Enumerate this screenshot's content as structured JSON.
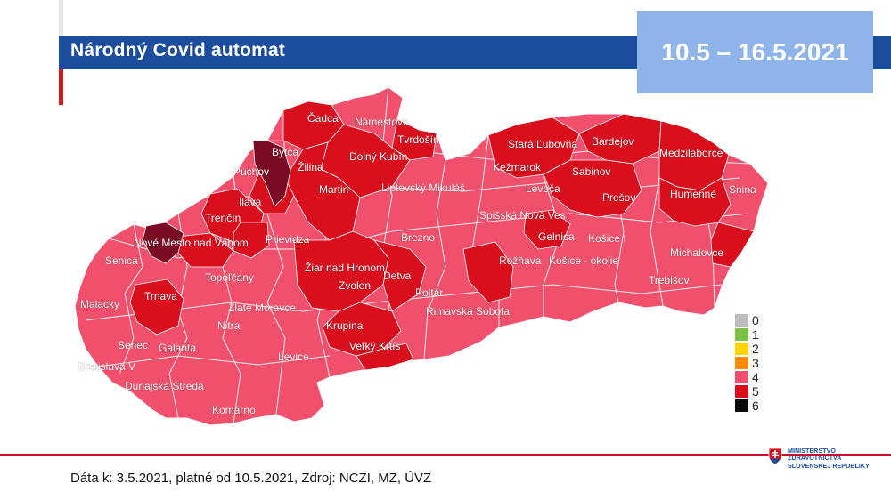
{
  "header": {
    "title": "Národný Covid automat",
    "date_range": "10.5 – 16.5.2021"
  },
  "colors": {
    "title_bar": "#1b4d9c",
    "date_box": "#8eb4ea",
    "accent_red": "#d7151f",
    "level_4": "#f0506b",
    "level_5": "#d90f1d",
    "level_6": "#7a0b24"
  },
  "legend": {
    "items": [
      {
        "label": "0",
        "color": "#bdbdbd"
      },
      {
        "label": "1",
        "color": "#7cc242"
      },
      {
        "label": "2",
        "color": "#ffd400"
      },
      {
        "label": "3",
        "color": "#ff8c00"
      },
      {
        "label": "4",
        "color": "#f0506b"
      },
      {
        "label": "5",
        "color": "#d90f1d"
      },
      {
        "label": "6",
        "color": "#0a0a0a"
      }
    ]
  },
  "map": {
    "districts": [
      {
        "name": "Čadca",
        "level": 5
      },
      {
        "name": "Námestovo",
        "level": 4
      },
      {
        "name": "Tvrdošín",
        "level": 5
      },
      {
        "name": "Bytča",
        "level": 6
      },
      {
        "name": "Žilina",
        "level": 4
      },
      {
        "name": "Dolný Kubín",
        "level": 5
      },
      {
        "name": "Púchov",
        "level": 5
      },
      {
        "name": "Martin",
        "level": 5
      },
      {
        "name": "Liptovský Mikuláš",
        "level": 4
      },
      {
        "name": "Stará Ľubovňa",
        "level": 5
      },
      {
        "name": "Bardejov",
        "level": 5
      },
      {
        "name": "Medzilaborce",
        "level": 5
      },
      {
        "name": "Kežmarok",
        "level": 5
      },
      {
        "name": "Sabinov",
        "level": 5
      },
      {
        "name": "Levoča",
        "level": 5
      },
      {
        "name": "Prešov",
        "level": 5
      },
      {
        "name": "Humenné",
        "level": 5
      },
      {
        "name": "Snina",
        "level": 4
      },
      {
        "name": "Ilava",
        "level": 5
      },
      {
        "name": "Trenčín",
        "level": 5
      },
      {
        "name": "Spišská Nová Ves",
        "level": 4
      },
      {
        "name": "Nové Mesto nad Váhom",
        "level": 6
      },
      {
        "name": "Prievidza",
        "level": 4
      },
      {
        "name": "Brezno",
        "level": 4
      },
      {
        "name": "Gelnica",
        "level": 5
      },
      {
        "name": "Košice I",
        "level": 4
      },
      {
        "name": "Senica",
        "level": 4
      },
      {
        "name": "Žiar nad Hronom",
        "level": 5
      },
      {
        "name": "Rožňava",
        "level": 5
      },
      {
        "name": "Košice - okolie",
        "level": 4
      },
      {
        "name": "Michalovce",
        "level": 4
      },
      {
        "name": "Topoľčany",
        "level": 4
      },
      {
        "name": "Detva",
        "level": 5
      },
      {
        "name": "Zvolen",
        "level": 5
      },
      {
        "name": "Trnava",
        "level": 5
      },
      {
        "name": "Poltár",
        "level": 4
      },
      {
        "name": "Trebišov",
        "level": 4
      },
      {
        "name": "Malacky",
        "level": 4
      },
      {
        "name": "Zlaté Moravce",
        "level": 4
      },
      {
        "name": "Rimavská Sobota",
        "level": 4
      },
      {
        "name": "Nitra",
        "level": 4
      },
      {
        "name": "Krupina",
        "level": 5
      },
      {
        "name": "Senec",
        "level": 4
      },
      {
        "name": "Galanta",
        "level": 4
      },
      {
        "name": "Veľký Krtíš",
        "level": 5
      },
      {
        "name": "Bratislava V",
        "level": 4
      },
      {
        "name": "Levice",
        "level": 4
      },
      {
        "name": "Dunajská Streda",
        "level": 4
      },
      {
        "name": "Komárno",
        "level": 4
      }
    ]
  },
  "footer": {
    "source_text": "Dáta k: 3.5.2021, platné od 10.5.2021, Zdroj: NCZI, MZ, ÚVZ",
    "logo_line1": "MINISTERSTVO",
    "logo_line2": "ZDRAVOTNÍCTVA",
    "logo_line3": "SLOVENSKEJ REPUBLIKY"
  }
}
